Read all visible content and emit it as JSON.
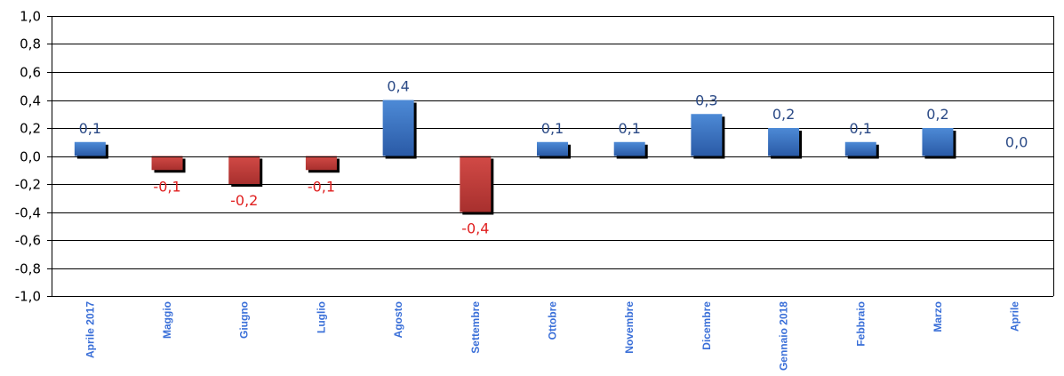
{
  "chart_data": {
    "type": "bar",
    "categories": [
      "Aprile 2017",
      "Maggio",
      "Giugno",
      "Luglio",
      "Agosto",
      "Settembre",
      "Ottobre",
      "Novembre",
      "Dicembre",
      "Gennaio 2018",
      "Febbraio",
      "Marzo",
      "Aprile"
    ],
    "values": [
      0.1,
      -0.1,
      -0.2,
      -0.1,
      0.4,
      -0.4,
      0.1,
      0.1,
      0.3,
      0.2,
      0.1,
      0.2,
      0.0
    ],
    "value_labels": [
      "0,1",
      "-0,1",
      "-0,2",
      "-0,1",
      "0,4",
      "-0,4",
      "0,1",
      "0,1",
      "0,3",
      "0,2",
      "0,1",
      "0,2",
      "0,0"
    ],
    "ylim": [
      -1.0,
      1.0
    ],
    "yticks": [
      1.0,
      0.8,
      0.6,
      0.4,
      0.2,
      0.0,
      -0.2,
      -0.4,
      -0.6,
      -0.8,
      -1.0
    ],
    "ytick_labels": [
      "1,0",
      "0,8",
      "0,6",
      "0,4",
      "0,2",
      "0,0",
      "-0,2",
      "-0,4",
      "-0,6",
      "-0,8",
      "-1,0"
    ],
    "grid": true,
    "legend": "none",
    "colors": {
      "positive": "#3a70c4",
      "negative": "#c0403e",
      "positive_label": "#2b4a86",
      "negative_label": "#e02020",
      "x_label": "#3a6fd8"
    }
  }
}
